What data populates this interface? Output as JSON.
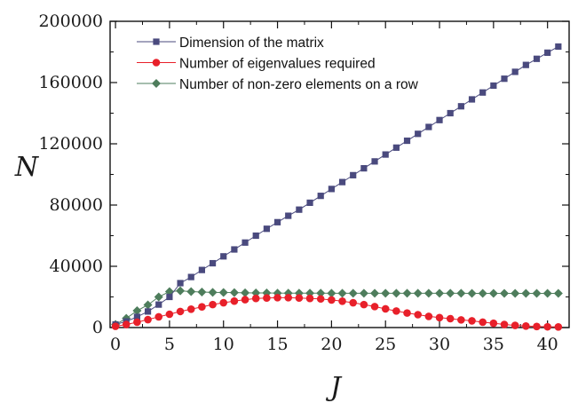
{
  "chart_data": {
    "type": "line",
    "xlabel": "J",
    "ylabel": "N",
    "xlim": [
      -0.5,
      42
    ],
    "ylim": [
      0,
      200000
    ],
    "x_ticks": [
      0,
      5,
      10,
      15,
      20,
      25,
      30,
      35,
      40
    ],
    "x_tick_labels": [
      "0",
      "5",
      "10",
      "15",
      "20",
      "25",
      "30",
      "35",
      "40"
    ],
    "y_ticks": [
      0,
      40000,
      80000,
      120000,
      160000,
      200000
    ],
    "y_tick_labels": [
      "0",
      "40000",
      "80000",
      "120000",
      "160000",
      "200000"
    ],
    "legend_position": "top-left",
    "grid": false,
    "x": [
      0,
      1,
      2,
      3,
      4,
      5,
      6,
      7,
      8,
      9,
      10,
      11,
      12,
      13,
      14,
      15,
      16,
      17,
      18,
      19,
      20,
      21,
      22,
      23,
      24,
      25,
      26,
      27,
      28,
      29,
      30,
      31,
      32,
      33,
      34,
      35,
      36,
      37,
      38,
      39,
      40,
      41
    ],
    "series": [
      {
        "name": "Dimension of the matrix",
        "marker": "square",
        "color": "#4a4a7e",
        "values": [
          2000,
          4000,
          7000,
          10500,
          15000,
          20000,
          29000,
          33000,
          37600,
          42000,
          46500,
          51000,
          55500,
          60000,
          64500,
          68800,
          73000,
          77000,
          81500,
          86000,
          90500,
          95000,
          99500,
          104000,
          108500,
          113000,
          117500,
          122000,
          126500,
          131000,
          135500,
          140000,
          144500,
          149000,
          153500,
          158000,
          162500,
          167000,
          171500,
          175500,
          179500,
          183500
        ]
      },
      {
        "name": "Number of eigenvalues required",
        "marker": "circle",
        "color": "#e8202a",
        "values": [
          800,
          2000,
          3500,
          5200,
          7000,
          8700,
          10500,
          12000,
          13500,
          15000,
          16200,
          17300,
          18200,
          19000,
          19300,
          19500,
          19500,
          19300,
          19000,
          18700,
          18000,
          17200,
          16200,
          15000,
          13700,
          12200,
          10800,
          9500,
          8400,
          7300,
          6500,
          5800,
          5000,
          4400,
          3500,
          2800,
          2000,
          1400,
          1000,
          700,
          500,
          400
        ]
      },
      {
        "name": "Number of non-zero elements on a row",
        "marker": "diamond",
        "color": "#4e7d5c",
        "values": [
          2000,
          6000,
          11000,
          14800,
          20000,
          23500,
          24000,
          23500,
          23200,
          23000,
          22900,
          22800,
          22700,
          22600,
          22600,
          22500,
          22500,
          22500,
          22500,
          22500,
          22400,
          22400,
          22400,
          22400,
          22400,
          22400,
          22400,
          22400,
          22400,
          22400,
          22400,
          22400,
          22400,
          22300,
          22300,
          22300,
          22300,
          22300,
          22300,
          22300,
          22300,
          22300
        ]
      }
    ]
  }
}
